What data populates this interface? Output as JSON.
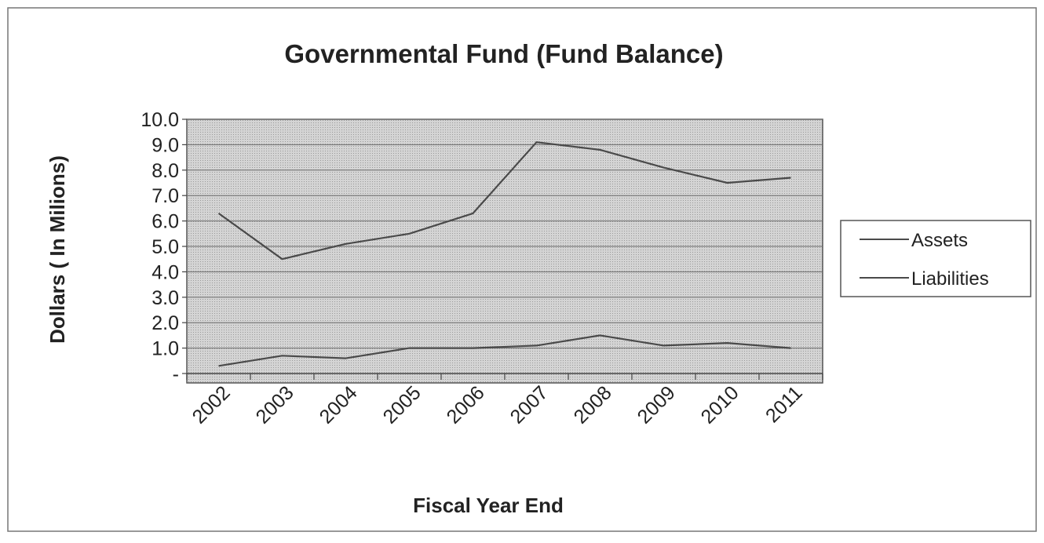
{
  "chart_data": {
    "type": "line",
    "title": "Governmental Fund (Fund Balance)",
    "xlabel": "Fiscal Year End",
    "ylabel": "Dollars ( In Milions)",
    "categories": [
      "2002",
      "2003",
      "2004",
      "2005",
      "2006",
      "2007",
      "2008",
      "2009",
      "2010",
      "2011"
    ],
    "yticks": [
      "-",
      "1.0",
      "2.0",
      "3.0",
      "4.0",
      "5.0",
      "6.0",
      "7.0",
      "8.0",
      "9.0",
      "10.0"
    ],
    "ylim": [
      0,
      10
    ],
    "grid": true,
    "legend_position": "right",
    "series": [
      {
        "name": "Assets",
        "values": [
          6.3,
          4.5,
          5.1,
          5.5,
          6.3,
          9.1,
          8.8,
          8.1,
          7.5,
          7.7
        ]
      },
      {
        "name": "Liabilities",
        "values": [
          0.3,
          0.7,
          0.6,
          1.0,
          1.0,
          1.1,
          1.5,
          1.1,
          1.2,
          1.0
        ]
      }
    ],
    "colors": {
      "plot_background": "#cfcfcf",
      "gridline": "#6a6a6a",
      "series_line": "#4a4a4a",
      "frame": "#555555"
    }
  }
}
